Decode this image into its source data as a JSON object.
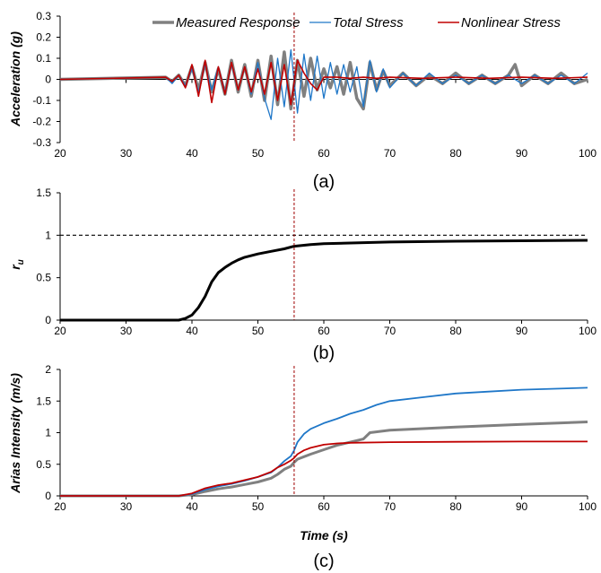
{
  "chart_data": [
    {
      "type": "line",
      "subplot_label": "(a)",
      "ylabel": "Acceleration (g)",
      "xlim": [
        20,
        100
      ],
      "ylim": [
        -0.3,
        0.3
      ],
      "xticks": [
        "20",
        "30",
        "40",
        "50",
        "60",
        "70",
        "80",
        "90",
        "100"
      ],
      "yticks": [
        "-0.3",
        "-0.2",
        "-0.1",
        "0",
        "0.1",
        "0.2",
        "0.3"
      ],
      "legend": {
        "position": "top",
        "entries": [
          "Measured Response",
          "Total Stress",
          "Nonlinear Stress"
        ]
      },
      "marker_line": {
        "x": 55.5,
        "style": "dashed",
        "color": "#a00000"
      },
      "series": [
        {
          "name": "Measured Response",
          "color": "#808080",
          "width": 3.5,
          "x": [
            20,
            36,
            37,
            38,
            39,
            40,
            41,
            42,
            43,
            44,
            45,
            46,
            47,
            48,
            49,
            50,
            51,
            52,
            53,
            54,
            55,
            56,
            57,
            58,
            59,
            60,
            61,
            62,
            63,
            64,
            65,
            66,
            67,
            68,
            69,
            70,
            72,
            74,
            76,
            78,
            80,
            82,
            84,
            86,
            88,
            89,
            90,
            92,
            94,
            96,
            98,
            100
          ],
          "y": [
            0,
            0.01,
            -0.01,
            0.02,
            -0.03,
            0.06,
            -0.05,
            0.08,
            -0.06,
            0.05,
            -0.07,
            0.09,
            -0.06,
            0.07,
            -0.08,
            0.09,
            -0.1,
            0.11,
            -0.12,
            0.13,
            -0.14,
            0.09,
            -0.08,
            0.1,
            -0.05,
            0.05,
            -0.04,
            0.06,
            -0.07,
            0.08,
            -0.09,
            -0.14,
            0.08,
            -0.05,
            0.04,
            -0.03,
            0.03,
            -0.03,
            0.02,
            -0.02,
            0.03,
            -0.02,
            0.02,
            -0.02,
            0.02,
            0.07,
            -0.03,
            0.02,
            -0.02,
            0.03,
            -0.02,
            0
          ]
        },
        {
          "name": "Total Stress",
          "color": "#1f77c8",
          "width": 1.3,
          "x": [
            20,
            36,
            37,
            38,
            39,
            40,
            41,
            42,
            43,
            44,
            45,
            46,
            47,
            48,
            49,
            50,
            51,
            52,
            53,
            54,
            55,
            56,
            57,
            58,
            59,
            60,
            61,
            62,
            63,
            64,
            65,
            66,
            67,
            68,
            69,
            70,
            72,
            74,
            76,
            78,
            80,
            82,
            84,
            86,
            88,
            90,
            92,
            94,
            96,
            98,
            100
          ],
          "y": [
            0,
            0.01,
            -0.02,
            0.02,
            -0.03,
            0.05,
            -0.06,
            0.07,
            -0.05,
            0.06,
            -0.06,
            0.07,
            -0.05,
            0.06,
            -0.07,
            0.08,
            -0.09,
            -0.19,
            0.1,
            -0.13,
            0.14,
            -0.16,
            0.12,
            -0.1,
            0.11,
            -0.09,
            0.08,
            -0.07,
            0.07,
            -0.06,
            0.06,
            -0.13,
            0.09,
            -0.06,
            0.05,
            -0.04,
            0.03,
            -0.03,
            0.03,
            -0.02,
            0.02,
            -0.02,
            0.02,
            -0.02,
            0.02,
            -0.02,
            0.02,
            -0.02,
            0.02,
            -0.02,
            0.03
          ]
        },
        {
          "name": "Nonlinear Stress",
          "color": "#c00000",
          "width": 1.6,
          "x": [
            20,
            36,
            37,
            38,
            39,
            40,
            41,
            42,
            43,
            44,
            45,
            46,
            47,
            48,
            49,
            50,
            51,
            52,
            53,
            54,
            55,
            56,
            57,
            58,
            59,
            60,
            62,
            64,
            66,
            68,
            70,
            75,
            80,
            85,
            90,
            95,
            100
          ],
          "y": [
            0,
            0.01,
            -0.01,
            0.02,
            -0.04,
            0.07,
            -0.08,
            0.09,
            -0.11,
            0.06,
            -0.07,
            0.08,
            -0.05,
            0.06,
            -0.06,
            0.05,
            -0.07,
            0.08,
            -0.1,
            0.07,
            -0.12,
            0.09,
            0.03,
            -0.02,
            -0.05,
            0.01,
            0.01,
            0.005,
            0.01,
            0.005,
            0.01,
            0.005,
            0.01,
            0.005,
            0.01,
            0.005,
            0.01
          ]
        }
      ]
    },
    {
      "type": "line",
      "subplot_label": "(b)",
      "ylabel": "r",
      "ylabel_sub": "u",
      "xlim": [
        20,
        100
      ],
      "ylim": [
        0,
        1.5
      ],
      "xticks": [
        "20",
        "30",
        "40",
        "50",
        "60",
        "70",
        "80",
        "90",
        "100"
      ],
      "yticks": [
        "0",
        "0.5",
        "1",
        "1.5"
      ],
      "reference_line": {
        "y": 1,
        "style": "dashed",
        "color": "#000000"
      },
      "marker_line": {
        "x": 55.5,
        "style": "dashed",
        "color": "#a00000"
      },
      "series": [
        {
          "color": "#000000",
          "width": 3,
          "x": [
            20,
            38,
            39,
            40,
            41,
            42,
            43,
            44,
            45,
            46,
            47,
            48,
            50,
            52,
            54,
            55.5,
            58,
            60,
            70,
            80,
            90,
            100
          ],
          "y": [
            0,
            0,
            0.02,
            0.06,
            0.15,
            0.28,
            0.45,
            0.56,
            0.62,
            0.67,
            0.71,
            0.74,
            0.78,
            0.81,
            0.84,
            0.87,
            0.89,
            0.9,
            0.92,
            0.93,
            0.935,
            0.94
          ]
        }
      ]
    },
    {
      "type": "line",
      "subplot_label": "(c)",
      "ylabel": "Arias Intensity (m/s)",
      "xlabel": "Time (s)",
      "xlim": [
        20,
        100
      ],
      "ylim": [
        0,
        2
      ],
      "xticks": [
        "20",
        "30",
        "40",
        "50",
        "60",
        "70",
        "80",
        "90",
        "100"
      ],
      "yticks": [
        "0",
        "0.5",
        "1",
        "1.5",
        "2"
      ],
      "marker_line": {
        "x": 55.5,
        "style": "dashed",
        "color": "#a00000"
      },
      "series": [
        {
          "name": "Measured Response",
          "color": "#808080",
          "width": 3,
          "x": [
            20,
            38,
            40,
            42,
            44,
            46,
            48,
            50,
            52,
            53,
            54,
            55,
            55.5,
            56,
            57,
            58,
            60,
            62,
            64,
            66,
            67,
            70,
            80,
            90,
            100
          ],
          "y": [
            0,
            0,
            0.02,
            0.07,
            0.11,
            0.14,
            0.18,
            0.22,
            0.28,
            0.34,
            0.42,
            0.47,
            0.53,
            0.58,
            0.62,
            0.66,
            0.73,
            0.8,
            0.85,
            0.9,
            1.0,
            1.04,
            1.09,
            1.13,
            1.17
          ]
        },
        {
          "name": "Total Stress",
          "color": "#1f77c8",
          "width": 1.8,
          "x": [
            20,
            38,
            40,
            42,
            44,
            46,
            48,
            50,
            52,
            53,
            54,
            55,
            55.5,
            56,
            57,
            58,
            60,
            62,
            64,
            66,
            68,
            70,
            75,
            80,
            85,
            90,
            100
          ],
          "y": [
            0,
            0,
            0.03,
            0.1,
            0.15,
            0.19,
            0.24,
            0.3,
            0.37,
            0.45,
            0.55,
            0.63,
            0.72,
            0.85,
            0.98,
            1.06,
            1.15,
            1.22,
            1.3,
            1.36,
            1.44,
            1.5,
            1.56,
            1.62,
            1.65,
            1.68,
            1.71
          ]
        },
        {
          "name": "Nonlinear Stress",
          "color": "#c00000",
          "width": 1.8,
          "x": [
            20,
            38,
            40,
            42,
            44,
            46,
            48,
            50,
            52,
            53,
            54,
            55,
            55.5,
            56,
            57,
            58,
            60,
            62,
            64,
            70,
            80,
            90,
            100
          ],
          "y": [
            0,
            0,
            0.04,
            0.12,
            0.17,
            0.2,
            0.25,
            0.3,
            0.38,
            0.45,
            0.5,
            0.56,
            0.6,
            0.66,
            0.72,
            0.76,
            0.81,
            0.83,
            0.84,
            0.85,
            0.855,
            0.86,
            0.86
          ]
        }
      ]
    }
  ]
}
